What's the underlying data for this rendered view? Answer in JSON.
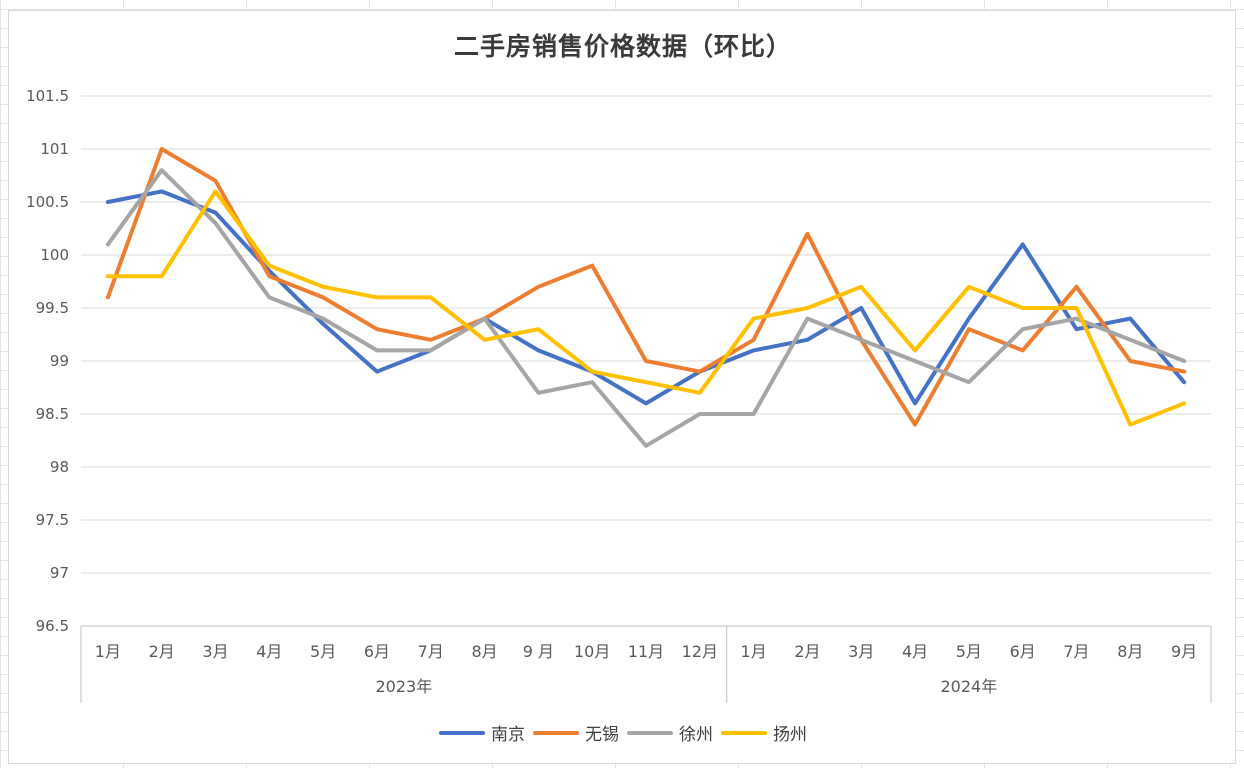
{
  "chart_data": {
    "type": "line",
    "title": "二手房销售价格数据（环比）",
    "xlabel": "",
    "ylabel": "",
    "ylim": [
      96.5,
      101.5
    ],
    "yticks": [
      "101.5",
      "101",
      "100.5",
      "100",
      "99.5",
      "99",
      "98.5",
      "98",
      "97.5",
      "97",
      "96.5"
    ],
    "grid": true,
    "legend_position": "bottom",
    "categories": [
      "1月",
      "2月",
      "3月",
      "4月",
      "5月",
      "6月",
      "7月",
      "8月",
      "9 月",
      "10月",
      "11月",
      "12月",
      "1月",
      "2月",
      "3月",
      "4月",
      "5月",
      "6月",
      "7月",
      "8月",
      "9月"
    ],
    "groups": [
      {
        "label": "2023年",
        "count": 12
      },
      {
        "label": "2024年",
        "count": 9
      }
    ],
    "series": [
      {
        "name": "南京",
        "color": "#4472c4",
        "values": [
          100.5,
          100.6,
          100.4,
          99.85,
          99.35,
          98.9,
          99.1,
          99.4,
          99.1,
          98.9,
          98.6,
          98.9,
          99.1,
          99.2,
          99.5,
          98.6,
          99.4,
          100.1,
          99.3,
          99.4,
          98.8
        ]
      },
      {
        "name": "无锡",
        "color": "#ed7d31",
        "values": [
          99.6,
          101.0,
          100.7,
          99.8,
          99.6,
          99.3,
          99.2,
          99.4,
          99.7,
          99.9,
          99.0,
          98.9,
          99.2,
          100.2,
          99.2,
          98.4,
          99.3,
          99.1,
          99.7,
          99.0,
          98.9
        ]
      },
      {
        "name": "徐州",
        "color": "#a5a5a5",
        "values": [
          100.1,
          100.8,
          100.3,
          99.6,
          99.4,
          99.1,
          99.1,
          99.4,
          98.7,
          98.8,
          98.2,
          98.5,
          98.5,
          99.4,
          99.2,
          99.0,
          98.8,
          99.3,
          99.4,
          99.2,
          99.0
        ]
      },
      {
        "name": "扬州",
        "color": "#ffc000",
        "values": [
          99.8,
          99.8,
          100.6,
          99.9,
          99.7,
          99.6,
          99.6,
          99.2,
          99.3,
          98.9,
          98.8,
          98.7,
          99.4,
          99.5,
          99.7,
          99.1,
          99.7,
          99.5,
          99.5,
          98.4,
          98.6
        ]
      }
    ]
  }
}
